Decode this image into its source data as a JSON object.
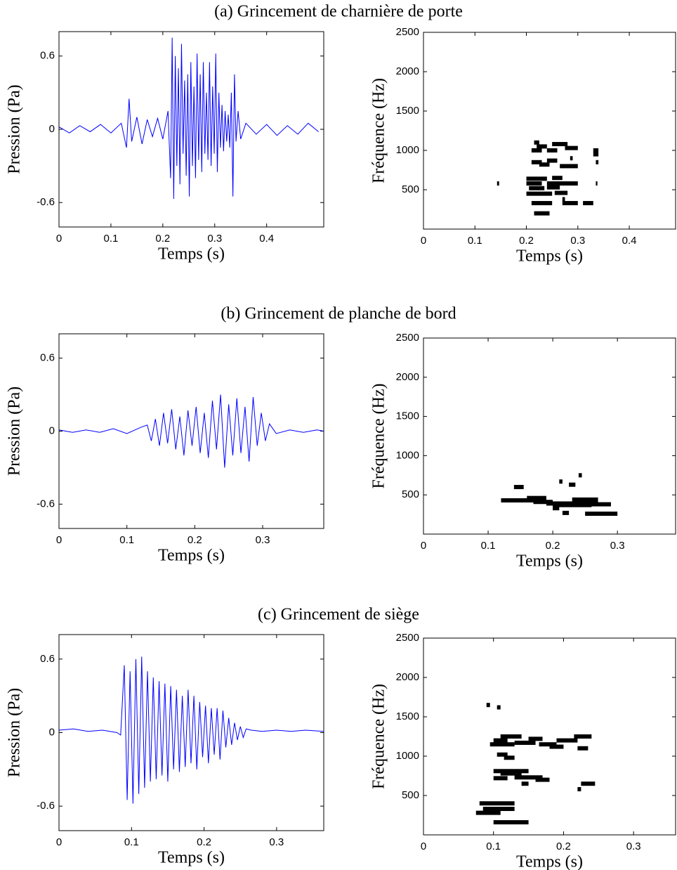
{
  "chart_data": [
    {
      "type": "line",
      "title": "(a) Grincement de charnière de porte",
      "xlabel": "Temps (s)",
      "ylabel": "Pression (Pa)",
      "color": "#0000ff",
      "xlim": [
        0,
        0.51
      ],
      "ylim": [
        -0.8,
        0.8
      ],
      "xticks": [
        0,
        0.1,
        0.2,
        0.3,
        0.4
      ],
      "yticks": [
        -0.6,
        0,
        0.6
      ],
      "x": [
        0,
        0.02,
        0.04,
        0.06,
        0.08,
        0.1,
        0.12,
        0.13,
        0.135,
        0.14,
        0.15,
        0.16,
        0.17,
        0.18,
        0.19,
        0.2,
        0.21,
        0.215,
        0.218,
        0.221,
        0.224,
        0.227,
        0.23,
        0.233,
        0.236,
        0.239,
        0.242,
        0.245,
        0.248,
        0.251,
        0.254,
        0.257,
        0.26,
        0.263,
        0.266,
        0.269,
        0.272,
        0.275,
        0.278,
        0.281,
        0.284,
        0.287,
        0.29,
        0.293,
        0.296,
        0.299,
        0.302,
        0.305,
        0.308,
        0.311,
        0.314,
        0.317,
        0.32,
        0.323,
        0.326,
        0.329,
        0.332,
        0.335,
        0.338,
        0.341,
        0.345,
        0.35,
        0.36,
        0.38,
        0.4,
        0.42,
        0.44,
        0.46,
        0.48,
        0.5
      ],
      "values": [
        0.02,
        -0.03,
        0.03,
        -0.02,
        0.04,
        -0.03,
        0.05,
        -0.15,
        0.25,
        -0.1,
        0.1,
        -0.12,
        0.08,
        -0.06,
        0.09,
        -0.08,
        0.15,
        -0.4,
        0.75,
        -0.57,
        0.6,
        -0.3,
        0.5,
        -0.45,
        0.7,
        -0.2,
        0.4,
        -0.38,
        0.45,
        -0.55,
        0.55,
        -0.3,
        0.35,
        -0.4,
        0.62,
        -0.25,
        0.45,
        -0.35,
        0.55,
        -0.2,
        0.3,
        -0.25,
        0.55,
        -0.3,
        0.35,
        -0.2,
        0.62,
        -0.35,
        0.3,
        -0.15,
        0.2,
        -0.18,
        0.15,
        -0.1,
        0.12,
        -0.15,
        0.3,
        -0.55,
        0.45,
        -0.1,
        0.15,
        -0.08,
        0.05,
        -0.04,
        0.04,
        -0.05,
        0.03,
        -0.04,
        0.05,
        -0.02
      ]
    },
    {
      "type": "spectrogram",
      "xlabel": "Temps (s)",
      "ylabel": "Fréquence (Hz)",
      "color": "#000000",
      "xlim": [
        0,
        0.49
      ],
      "ylim": [
        0,
        2500
      ],
      "xticks": [
        0,
        0.1,
        0.2,
        0.3,
        0.4
      ],
      "yticks": [
        500,
        1000,
        1500,
        2000,
        2500
      ],
      "x_start": [
        0.143,
        0.215,
        0.22,
        0.24,
        0.25,
        0.275,
        0.21,
        0.21,
        0.24,
        0.265,
        0.225,
        0.2,
        0.25,
        0.2,
        0.24,
        0.205,
        0.24,
        0.2,
        0.255,
        0.21,
        0.27,
        0.31,
        0.215,
        0.33,
        0.33,
        0.335,
        0.335,
        0.285,
        0.27
      ],
      "x_end": [
        0.147,
        0.225,
        0.24,
        0.26,
        0.28,
        0.3,
        0.23,
        0.23,
        0.26,
        0.3,
        0.245,
        0.24,
        0.27,
        0.23,
        0.3,
        0.235,
        0.265,
        0.25,
        0.28,
        0.25,
        0.3,
        0.33,
        0.245,
        0.34,
        0.34,
        0.34,
        0.338,
        0.29,
        0.275
      ],
      "values": [
        580,
        1100,
        1050,
        1000,
        1080,
        1030,
        1000,
        850,
        870,
        800,
        820,
        640,
        650,
        580,
        580,
        520,
        530,
        450,
        460,
        330,
        330,
        330,
        200,
        1000,
        950,
        850,
        580,
        900,
        380
      ]
    },
    {
      "type": "line",
      "title": "(b) Grincement de planche de bord",
      "xlabel": "Temps (s)",
      "ylabel": "Pression (Pa)",
      "color": "#0000ff",
      "xlim": [
        0,
        0.39
      ],
      "ylim": [
        -0.8,
        0.8
      ],
      "xticks": [
        0,
        0.1,
        0.2,
        0.3
      ],
      "yticks": [
        -0.6,
        0,
        0.6
      ],
      "x": [
        0,
        0.02,
        0.04,
        0.06,
        0.08,
        0.1,
        0.12,
        0.13,
        0.136,
        0.142,
        0.148,
        0.154,
        0.16,
        0.166,
        0.172,
        0.178,
        0.184,
        0.19,
        0.196,
        0.202,
        0.208,
        0.214,
        0.22,
        0.226,
        0.232,
        0.238,
        0.244,
        0.25,
        0.256,
        0.262,
        0.268,
        0.274,
        0.28,
        0.286,
        0.292,
        0.298,
        0.304,
        0.31,
        0.32,
        0.34,
        0.36,
        0.38,
        0.39
      ],
      "values": [
        0.01,
        -0.01,
        0.01,
        -0.01,
        0.02,
        -0.02,
        0.03,
        0.05,
        -0.08,
        0.1,
        -0.12,
        0.15,
        -0.1,
        0.18,
        -0.15,
        0.12,
        -0.2,
        0.17,
        -0.12,
        0.2,
        -0.18,
        0.15,
        -0.22,
        0.25,
        -0.15,
        0.3,
        -0.3,
        0.22,
        -0.2,
        0.27,
        -0.18,
        0.2,
        -0.25,
        0.28,
        -0.12,
        0.15,
        -0.08,
        0.06,
        -0.02,
        0.01,
        -0.01,
        0.01,
        0
      ]
    },
    {
      "type": "spectrogram",
      "xlabel": "Temps (s)",
      "ylabel": "Fréquence (Hz)",
      "color": "#000000",
      "xlim": [
        0,
        0.39
      ],
      "ylim": [
        0,
        2500
      ],
      "xticks": [
        0,
        0.1,
        0.2,
        0.3
      ],
      "yticks": [
        500,
        1000,
        1500,
        2000,
        2500
      ],
      "x_start": [
        0.14,
        0.12,
        0.17,
        0.19,
        0.2,
        0.22,
        0.23,
        0.24,
        0.16,
        0.25,
        0.215,
        0.225,
        0.21,
        0.24,
        0.2
      ],
      "x_end": [
        0.155,
        0.19,
        0.2,
        0.24,
        0.26,
        0.29,
        0.27,
        0.27,
        0.19,
        0.3,
        0.225,
        0.235,
        0.215,
        0.245,
        0.21
      ],
      "values": [
        600,
        430,
        410,
        390,
        370,
        380,
        440,
        410,
        460,
        260,
        270,
        630,
        670,
        750,
        330
      ]
    },
    {
      "type": "line",
      "title": "(c) Grincement de siège",
      "xlabel": "Temps (s)",
      "ylabel": "Pression (Pa)",
      "color": "#0000ff",
      "xlim": [
        0,
        0.365
      ],
      "ylim": [
        -0.8,
        0.8
      ],
      "xticks": [
        0,
        0.1,
        0.2,
        0.3
      ],
      "yticks": [
        -0.6,
        0,
        0.6
      ],
      "x": [
        0,
        0.02,
        0.04,
        0.06,
        0.08,
        0.085,
        0.09,
        0.094,
        0.098,
        0.102,
        0.106,
        0.11,
        0.114,
        0.118,
        0.122,
        0.126,
        0.13,
        0.134,
        0.138,
        0.142,
        0.146,
        0.15,
        0.154,
        0.158,
        0.162,
        0.166,
        0.17,
        0.174,
        0.178,
        0.182,
        0.186,
        0.19,
        0.194,
        0.198,
        0.202,
        0.206,
        0.21,
        0.214,
        0.218,
        0.222,
        0.226,
        0.23,
        0.234,
        0.238,
        0.242,
        0.246,
        0.25,
        0.254,
        0.258,
        0.265,
        0.28,
        0.3,
        0.32,
        0.34,
        0.365
      ],
      "values": [
        0.02,
        0.03,
        0.01,
        0.02,
        0,
        -0.02,
        0.55,
        -0.55,
        0.5,
        -0.58,
        0.6,
        -0.5,
        0.62,
        -0.45,
        0.5,
        -0.4,
        0.45,
        -0.38,
        0.42,
        -0.35,
        0.4,
        -0.4,
        0.38,
        -0.3,
        0.35,
        -0.32,
        0.3,
        -0.28,
        0.35,
        -0.25,
        0.3,
        -0.3,
        0.25,
        -0.2,
        0.22,
        -0.25,
        0.2,
        -0.18,
        0.2,
        -0.22,
        0.18,
        -0.12,
        0.12,
        -0.1,
        0.08,
        -0.06,
        0.05,
        -0.04,
        0.03,
        0.02,
        0.01,
        0.02,
        0.01,
        0.02,
        0.01
      ]
    },
    {
      "type": "spectrogram",
      "xlabel": "Temps (s)",
      "ylabel": "Fréquence (Hz)",
      "color": "#000000",
      "xlim": [
        0,
        0.36
      ],
      "ylim": [
        0,
        2500
      ],
      "xticks": [
        0,
        0.1,
        0.2,
        0.3
      ],
      "yticks": [
        500,
        1000,
        1500,
        2000,
        2500
      ],
      "x_start": [
        0.09,
        0.105,
        0.1,
        0.095,
        0.11,
        0.13,
        0.15,
        0.165,
        0.18,
        0.19,
        0.215,
        0.22,
        0.105,
        0.115,
        0.1,
        0.11,
        0.13,
        0.16,
        0.14,
        0.1,
        0.225,
        0.22,
        0.08,
        0.085,
        0.075,
        0.1
      ],
      "x_end": [
        0.095,
        0.11,
        0.12,
        0.13,
        0.14,
        0.16,
        0.17,
        0.19,
        0.2,
        0.22,
        0.24,
        0.235,
        0.12,
        0.13,
        0.15,
        0.14,
        0.17,
        0.18,
        0.15,
        0.12,
        0.245,
        0.225,
        0.13,
        0.13,
        0.11,
        0.15
      ],
      "values": [
        1650,
        1620,
        1200,
        1150,
        1250,
        1170,
        1220,
        1150,
        1120,
        1200,
        1250,
        1100,
        1020,
        980,
        810,
        780,
        730,
        700,
        650,
        720,
        650,
        580,
        400,
        330,
        280,
        160
      ]
    }
  ]
}
